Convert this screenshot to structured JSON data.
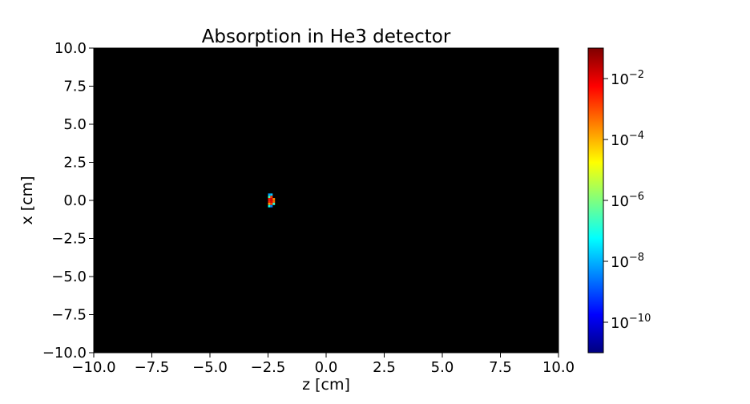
{
  "chart_data": {
    "type": "heatmap",
    "title": "Absorption in He3 detector",
    "xlabel": "z [cm]",
    "ylabel": "x [cm]",
    "xlim": [
      -10,
      10
    ],
    "ylim": [
      -10,
      10
    ],
    "x_ticks": [
      {
        "value": -10,
        "label": "−10.0"
      },
      {
        "value": -7.5,
        "label": "−7.5"
      },
      {
        "value": -5,
        "label": "−5.0"
      },
      {
        "value": -2.5,
        "label": "−2.5"
      },
      {
        "value": 0,
        "label": "0.0"
      },
      {
        "value": 2.5,
        "label": "2.5"
      },
      {
        "value": 5,
        "label": "5.0"
      },
      {
        "value": 7.5,
        "label": "7.5"
      },
      {
        "value": 10,
        "label": "10.0"
      }
    ],
    "y_ticks": [
      {
        "value": 10,
        "label": "10.0"
      },
      {
        "value": 7.5,
        "label": "7.5"
      },
      {
        "value": 5,
        "label": "5.0"
      },
      {
        "value": 2.5,
        "label": "2.5"
      },
      {
        "value": 0,
        "label": "0.0"
      },
      {
        "value": -2.5,
        "label": "−2.5"
      },
      {
        "value": -5,
        "label": "−5.0"
      },
      {
        "value": -7.5,
        "label": "−7.5"
      },
      {
        "value": -10,
        "label": "−10.0"
      }
    ],
    "background_color": "#000000",
    "colormap": "jet",
    "colorbar": {
      "scale": "log",
      "range_exponent": [
        -11,
        -1
      ],
      "ticks": [
        {
          "exp": -2,
          "base": "10",
          "sup": "−2"
        },
        {
          "exp": -4,
          "base": "10",
          "sup": "−4"
        },
        {
          "exp": -6,
          "base": "10",
          "sup": "−6"
        },
        {
          "exp": -8,
          "base": "10",
          "sup": "−8"
        },
        {
          "exp": -10,
          "base": "10",
          "sup": "−10"
        }
      ]
    },
    "cells": [
      {
        "z": -2.45,
        "x": 0.38,
        "log10": -8.2
      },
      {
        "z": -2.35,
        "x": 0.38,
        "log10": -7.8
      },
      {
        "z": -2.45,
        "x": 0.23,
        "log10": -6.5
      },
      {
        "z": -2.35,
        "x": 0.23,
        "log10": -2.7
      },
      {
        "z": -2.45,
        "x": 0.08,
        "log10": -2.5
      },
      {
        "z": -2.35,
        "x": 0.08,
        "log10": -1.9
      },
      {
        "z": -2.25,
        "x": 0.08,
        "log10": -3.6
      },
      {
        "z": -2.45,
        "x": -0.08,
        "log10": -2.6
      },
      {
        "z": -2.35,
        "x": -0.08,
        "log10": -2.0
      },
      {
        "z": -2.25,
        "x": -0.08,
        "log10": -3.3
      },
      {
        "z": -2.45,
        "x": -0.23,
        "log10": -3.8
      },
      {
        "z": -2.35,
        "x": -0.23,
        "log10": -2.8
      },
      {
        "z": -2.25,
        "x": -0.23,
        "log10": -6.8
      },
      {
        "z": -2.45,
        "x": -0.38,
        "log10": -7.2
      },
      {
        "z": -2.35,
        "x": -0.38,
        "log10": -8.5
      }
    ]
  }
}
